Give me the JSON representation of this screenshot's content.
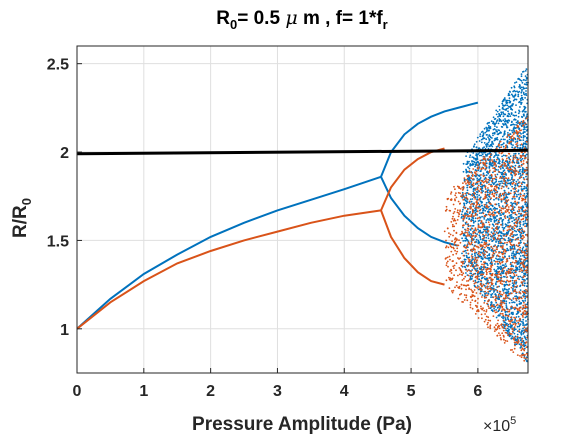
{
  "chart_data": {
    "type": "scatter",
    "title": {
      "main": "R",
      "sub0": "0",
      "mid": "= 0.5 ",
      "mu": "μ",
      "rest": " m , f= 1*f",
      "subr": "r"
    },
    "xlabel": "Pressure Amplitude (Pa)",
    "ylabel": {
      "main": "R/R",
      "sub": "0"
    },
    "x_multiplier": {
      "base": "×10",
      "exp": "5"
    },
    "xlim": [
      0,
      6.75
    ],
    "ylim": [
      0.75,
      2.6
    ],
    "xticks": [
      0,
      1,
      2,
      3,
      4,
      5,
      6
    ],
    "xtick_labels": [
      "0",
      "1",
      "2",
      "3",
      "4",
      "5",
      "6"
    ],
    "yticks": [
      1,
      1.5,
      2,
      2.5
    ],
    "ytick_labels": [
      "1",
      "1.5",
      "2",
      "2.5"
    ],
    "grid": true,
    "colors": {
      "blue": "#0072BD",
      "orange": "#D95319",
      "black": "#000000",
      "grid": "#DFDFDF",
      "axis": "#262626"
    },
    "series": [
      {
        "color_key": "blue",
        "branches": [
          {
            "x": [
              0,
              0.5,
              1.0,
              1.5,
              2.0,
              2.5,
              3.0,
              3.5,
              4.0,
              4.55
            ],
            "y": [
              1.0,
              1.17,
              1.31,
              1.42,
              1.52,
              1.6,
              1.67,
              1.73,
              1.79,
              1.86
            ]
          },
          {
            "x": [
              4.55,
              4.7,
              4.9,
              5.1,
              5.3,
              5.5,
              5.7,
              5.8,
              5.9,
              6.0
            ],
            "y": [
              1.86,
              2.0,
              2.1,
              2.16,
              2.2,
              2.23,
              2.25,
              2.26,
              2.27,
              2.28
            ]
          },
          {
            "x": [
              4.55,
              4.7,
              4.9,
              5.1,
              5.3,
              5.5,
              5.7
            ],
            "y": [
              1.86,
              1.74,
              1.64,
              1.57,
              1.52,
              1.49,
              1.47
            ]
          }
        ],
        "chaos": {
          "x_range": [
            5.75,
            6.75
          ],
          "y_range": [
            0.8,
            2.5
          ]
        }
      },
      {
        "color_key": "orange",
        "branches": [
          {
            "x": [
              0,
              0.5,
              1.0,
              1.5,
              2.0,
              2.5,
              3.0,
              3.5,
              4.0,
              4.55
            ],
            "y": [
              1.0,
              1.15,
              1.27,
              1.37,
              1.44,
              1.5,
              1.55,
              1.6,
              1.64,
              1.67
            ]
          },
          {
            "x": [
              4.55,
              4.7,
              4.9,
              5.1,
              5.3,
              5.5
            ],
            "y": [
              1.67,
              1.8,
              1.9,
              1.96,
              2.0,
              2.02
            ]
          },
          {
            "x": [
              4.55,
              4.7,
              4.9,
              5.1,
              5.3,
              5.5
            ],
            "y": [
              1.67,
              1.52,
              1.4,
              1.32,
              1.27,
              1.25
            ]
          }
        ],
        "chaos": {
          "x_range": [
            5.5,
            6.75
          ],
          "y_range": [
            0.78,
            2.22
          ]
        }
      },
      {
        "color_key": "black",
        "branches": [
          {
            "x": [
              0,
              6.75
            ],
            "y": [
              1.99,
              2.01
            ]
          }
        ]
      }
    ]
  }
}
